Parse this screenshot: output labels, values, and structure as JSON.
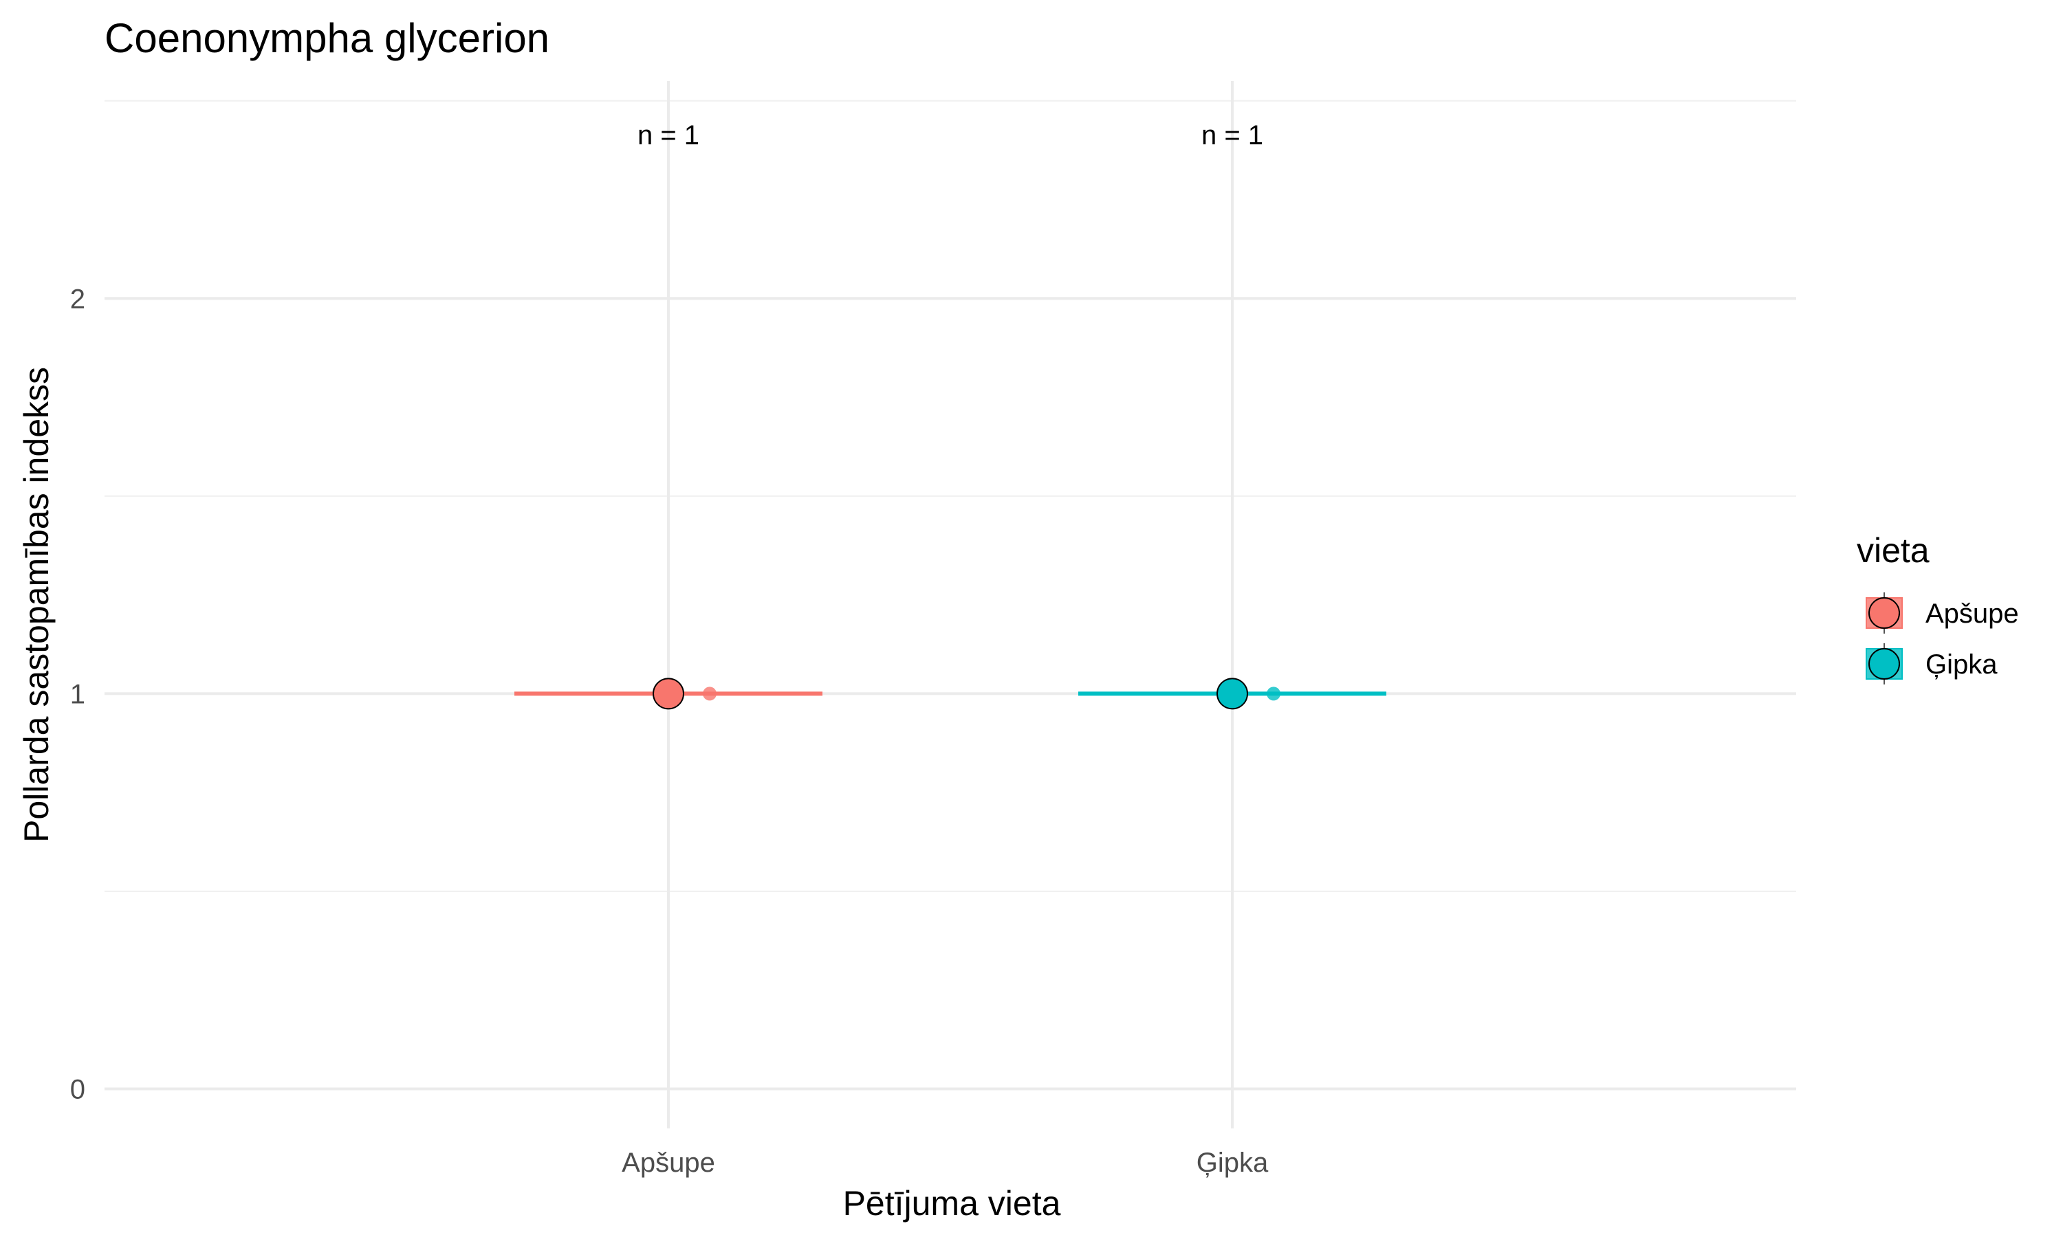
{
  "chart_data": {
    "type": "scatter",
    "title": "Coenonympha glycerion",
    "xlabel": "Pētījuma vieta",
    "ylabel": "Pollarda sastopamības indekss",
    "categories": [
      "Apšupe",
      "Ģipka"
    ],
    "ylim": [
      -0.1,
      2.55
    ],
    "yticks": [
      0,
      1,
      2
    ],
    "grid": true,
    "legend": {
      "title": "vieta",
      "placement": "right",
      "entries": [
        "Apšupe",
        "Ģipka"
      ]
    },
    "series": [
      {
        "name": "Apšupe",
        "color": "#F8766D",
        "mean": 1,
        "ci_low": 1,
        "ci_high": 1,
        "points": [
          1
        ],
        "n_label": "n = 1"
      },
      {
        "name": "Ģipka",
        "color": "#00BFC4",
        "mean": 1,
        "ci_low": 1,
        "ci_high": 1,
        "points": [
          1
        ],
        "n_label": "n = 1"
      }
    ]
  }
}
